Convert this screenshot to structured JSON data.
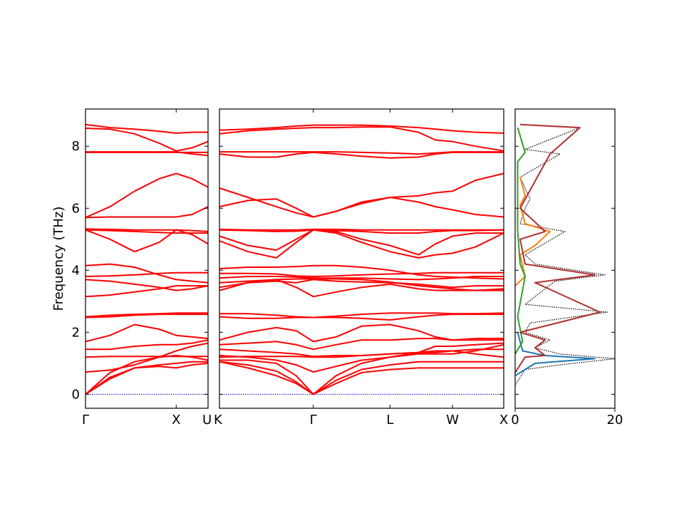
{
  "figure": {
    "ylabel": "Frequency (THz)",
    "colors": {
      "band": "#ff0000",
      "zero": "#0000cc",
      "frame": "#000000"
    }
  },
  "chart_data": [
    {
      "type": "line",
      "panel": "band-structure-segment-1",
      "ylabel": "Frequency (THz)",
      "ylim": [
        -0.45,
        9.2
      ],
      "yticks": [
        0,
        2,
        4,
        6,
        8
      ],
      "xtick_labels": [
        "Γ",
        "X",
        "U"
      ],
      "x": [
        0.0,
        0.2,
        0.4,
        0.6,
        0.74,
        0.87,
        1.0
      ],
      "series": [
        {
          "values": [
            0.0,
            0.55,
            0.85,
            0.95,
            1.0,
            1.05,
            1.05
          ]
        },
        {
          "values": [
            0.0,
            0.5,
            0.85,
            0.9,
            0.85,
            0.95,
            1.0
          ]
        },
        {
          "values": [
            0.0,
            0.7,
            1.05,
            1.2,
            1.25,
            1.2,
            1.1
          ]
        },
        {
          "values": [
            0.72,
            0.78,
            0.95,
            1.2,
            1.4,
            1.55,
            1.65
          ]
        },
        {
          "values": [
            1.2,
            1.22,
            1.22,
            1.22,
            1.22,
            1.22,
            1.22
          ]
        },
        {
          "values": [
            1.45,
            1.45,
            1.55,
            1.6,
            1.6,
            1.65,
            1.75
          ]
        },
        {
          "values": [
            1.7,
            1.9,
            2.25,
            2.1,
            1.9,
            1.85,
            1.8
          ]
        },
        {
          "values": [
            2.48,
            2.5,
            2.55,
            2.58,
            2.58,
            2.58,
            2.58
          ]
        },
        {
          "values": [
            2.5,
            2.55,
            2.58,
            2.6,
            2.62,
            2.62,
            2.62
          ]
        },
        {
          "values": [
            3.15,
            3.2,
            3.3,
            3.4,
            3.5,
            3.5,
            3.5
          ]
        },
        {
          "values": [
            3.7,
            3.65,
            3.55,
            3.45,
            3.35,
            3.4,
            3.5
          ]
        },
        {
          "values": [
            3.8,
            3.82,
            3.85,
            3.9,
            3.92,
            3.92,
            3.92
          ]
        },
        {
          "values": [
            4.15,
            4.2,
            4.1,
            3.85,
            3.7,
            3.65,
            3.6
          ]
        },
        {
          "values": [
            5.3,
            5.0,
            4.6,
            4.9,
            5.3,
            5.15,
            4.85
          ]
        },
        {
          "values": [
            5.3,
            5.28,
            5.25,
            5.22,
            5.2,
            5.2,
            5.2
          ]
        },
        {
          "values": [
            5.33,
            5.32,
            5.3,
            5.3,
            5.3,
            5.28,
            5.25
          ]
        },
        {
          "values": [
            5.7,
            5.72,
            5.72,
            5.72,
            5.72,
            5.8,
            6.05
          ]
        },
        {
          "values": [
            5.7,
            6.05,
            6.55,
            6.95,
            7.12,
            6.95,
            6.68
          ]
        },
        {
          "values": [
            7.8,
            7.8,
            7.8,
            7.8,
            7.8,
            7.8,
            7.8
          ]
        },
        {
          "values": [
            7.82,
            7.82,
            7.82,
            7.82,
            7.82,
            7.75,
            7.7
          ]
        },
        {
          "values": [
            8.58,
            8.55,
            8.4,
            8.1,
            7.85,
            7.95,
            8.15
          ]
        },
        {
          "values": [
            8.7,
            8.6,
            8.55,
            8.48,
            8.42,
            8.45,
            8.45
          ]
        }
      ]
    },
    {
      "type": "line",
      "panel": "band-structure-segment-2",
      "ylim": [
        -0.45,
        9.2
      ],
      "xtick_labels": [
        "K",
        "Γ",
        "L",
        "W",
        "X"
      ],
      "x": [
        0.0,
        0.1,
        0.2,
        0.27,
        0.33,
        0.41,
        0.5,
        0.6,
        0.7,
        0.76,
        0.82,
        0.9,
        1.0
      ],
      "series": [
        {
          "values": [
            1.05,
            0.85,
            0.6,
            0.35,
            0.0,
            0.35,
            0.7,
            0.8,
            0.85,
            0.85,
            0.85,
            0.85,
            0.85
          ]
        },
        {
          "values": [
            1.05,
            0.95,
            0.75,
            0.4,
            0.0,
            0.45,
            0.8,
            0.95,
            1.05,
            1.05,
            1.05,
            1.05,
            1.05
          ]
        },
        {
          "values": [
            1.1,
            1.1,
            1.0,
            0.6,
            0.0,
            0.6,
            1.0,
            1.2,
            1.35,
            1.4,
            1.4,
            1.3,
            1.2
          ]
        },
        {
          "values": [
            1.25,
            1.2,
            1.1,
            0.95,
            0.72,
            0.9,
            1.1,
            1.2,
            1.3,
            1.3,
            1.3,
            1.4,
            1.6
          ]
        },
        {
          "values": [
            1.2,
            1.22,
            1.22,
            1.22,
            1.2,
            1.2,
            1.25,
            1.3,
            1.35,
            1.35,
            1.4,
            1.45,
            1.45
          ]
        },
        {
          "values": [
            1.45,
            1.4,
            1.35,
            1.3,
            1.22,
            1.25,
            1.25,
            1.3,
            1.35,
            1.55,
            1.55,
            1.6,
            1.65
          ]
        },
        {
          "values": [
            1.6,
            1.65,
            1.7,
            1.6,
            1.45,
            1.6,
            1.75,
            1.75,
            1.8,
            1.8,
            1.75,
            1.75,
            1.75
          ]
        },
        {
          "values": [
            1.75,
            2.0,
            2.15,
            2.05,
            1.7,
            1.85,
            2.2,
            2.25,
            2.05,
            1.85,
            1.75,
            1.8,
            1.8
          ]
        },
        {
          "values": [
            2.5,
            2.45,
            2.45,
            2.48,
            2.48,
            2.48,
            2.45,
            2.4,
            2.5,
            2.55,
            2.58,
            2.58,
            2.58
          ]
        },
        {
          "values": [
            2.6,
            2.6,
            2.55,
            2.5,
            2.48,
            2.52,
            2.58,
            2.62,
            2.62,
            2.62,
            2.6,
            2.6,
            2.62
          ]
        },
        {
          "values": [
            3.35,
            3.6,
            3.7,
            3.45,
            3.15,
            3.3,
            3.45,
            3.55,
            3.4,
            3.35,
            3.35,
            3.35,
            3.4
          ]
        },
        {
          "values": [
            3.45,
            3.6,
            3.65,
            3.6,
            3.7,
            3.65,
            3.62,
            3.6,
            3.55,
            3.5,
            3.45,
            3.5,
            3.5
          ]
        },
        {
          "values": [
            3.6,
            3.65,
            3.7,
            3.72,
            3.72,
            3.72,
            3.7,
            3.62,
            3.5,
            3.45,
            3.4,
            3.35,
            3.35
          ]
        },
        {
          "values": [
            3.75,
            3.8,
            3.8,
            3.78,
            3.75,
            3.75,
            3.75,
            3.72,
            3.7,
            3.72,
            3.75,
            3.8,
            3.8
          ]
        },
        {
          "values": [
            3.9,
            3.9,
            3.88,
            3.82,
            3.8,
            3.82,
            3.85,
            3.88,
            3.9,
            3.92,
            3.92,
            3.92,
            3.92
          ]
        },
        {
          "values": [
            4.05,
            4.1,
            4.1,
            4.12,
            4.15,
            4.15,
            4.1,
            4.0,
            3.85,
            3.8,
            3.78,
            3.75,
            3.72
          ]
        },
        {
          "values": [
            4.95,
            4.6,
            4.4,
            4.9,
            5.3,
            5.2,
            4.9,
            4.6,
            4.4,
            4.5,
            4.55,
            4.75,
            5.2
          ]
        },
        {
          "values": [
            5.1,
            4.8,
            4.65,
            5.0,
            5.3,
            5.25,
            5.0,
            4.8,
            4.5,
            4.85,
            5.1,
            5.2,
            5.2
          ]
        },
        {
          "values": [
            5.3,
            5.28,
            5.25,
            5.26,
            5.3,
            5.28,
            5.25,
            5.2,
            5.2,
            5.25,
            5.28,
            5.28,
            5.3
          ]
        },
        {
          "values": [
            5.32,
            5.3,
            5.3,
            5.3,
            5.32,
            5.32,
            5.3,
            5.3,
            5.3,
            5.3,
            5.3,
            5.3,
            5.3
          ]
        },
        {
          "values": [
            6.05,
            6.25,
            6.3,
            6.0,
            5.72,
            5.9,
            6.2,
            6.35,
            6.4,
            6.5,
            6.55,
            6.9,
            7.12
          ]
        },
        {
          "values": [
            6.65,
            6.35,
            6.05,
            5.85,
            5.72,
            5.9,
            6.15,
            6.35,
            6.2,
            6.05,
            5.95,
            5.8,
            5.72
          ]
        },
        {
          "values": [
            7.75,
            7.65,
            7.65,
            7.75,
            7.8,
            7.75,
            7.68,
            7.62,
            7.65,
            7.75,
            7.8,
            7.8,
            7.8
          ]
        },
        {
          "values": [
            7.82,
            7.82,
            7.82,
            7.82,
            7.82,
            7.82,
            7.8,
            7.78,
            7.75,
            7.78,
            7.82,
            7.82,
            7.82
          ]
        },
        {
          "values": [
            8.4,
            8.5,
            8.55,
            8.58,
            8.6,
            8.6,
            8.62,
            8.62,
            8.45,
            8.2,
            8.15,
            8.0,
            7.85
          ]
        },
        {
          "values": [
            8.52,
            8.55,
            8.6,
            8.65,
            8.68,
            8.68,
            8.68,
            8.65,
            8.6,
            8.55,
            8.5,
            8.45,
            8.42
          ]
        }
      ]
    },
    {
      "type": "line",
      "panel": "partial-density-of-states",
      "xlim": [
        0,
        20
      ],
      "xticks": [
        0,
        20
      ],
      "ylim": [
        -0.45,
        9.2
      ],
      "series": [
        {
          "color": "#000000",
          "dashed": true,
          "points": [
            [
              0,
              0.3
            ],
            [
              2,
              0.8
            ],
            [
              9,
              0.95
            ],
            [
              20,
              1.15
            ],
            [
              9,
              1.3
            ],
            [
              4,
              1.5
            ],
            [
              7,
              1.75
            ],
            [
              2,
              2.0
            ],
            [
              3,
              2.3
            ],
            [
              18.5,
              2.65
            ],
            [
              2,
              2.9
            ],
            [
              6,
              3.4
            ],
            [
              8,
              3.65
            ],
            [
              18,
              3.85
            ],
            [
              4,
              4.2
            ],
            [
              2,
              4.5
            ],
            [
              10,
              5.25
            ],
            [
              1,
              5.5
            ],
            [
              2,
              6.0
            ],
            [
              3,
              6.3
            ],
            [
              1,
              7.0
            ],
            [
              9,
              7.75
            ],
            [
              2,
              7.9
            ],
            [
              13,
              8.6
            ],
            [
              2,
              8.7
            ]
          ]
        },
        {
          "color": "#1f77b4",
          "dashed": false,
          "points": [
            [
              0,
              0.6
            ],
            [
              4,
              1.0
            ],
            [
              16,
              1.15
            ],
            [
              6,
              1.25
            ],
            [
              1.5,
              1.4
            ],
            [
              0.5,
              2.0
            ]
          ]
        },
        {
          "color": "#ff7f0e",
          "dashed": false,
          "points": [
            [
              0,
              3.5
            ],
            [
              2,
              3.8
            ],
            [
              1,
              4.5
            ],
            [
              4,
              4.8
            ],
            [
              7,
              5.25
            ],
            [
              2,
              5.5
            ],
            [
              1,
              6.1
            ],
            [
              2,
              6.4
            ],
            [
              1,
              7.0
            ]
          ]
        },
        {
          "color": "#2ca02c",
          "dashed": false,
          "points": [
            [
              0,
              1.3
            ],
            [
              1.5,
              1.7
            ],
            [
              0.5,
              2.5
            ],
            [
              2,
              3.8
            ],
            [
              1,
              4.2
            ],
            [
              0.5,
              5.3
            ],
            [
              0.5,
              7.5
            ],
            [
              2,
              7.8
            ],
            [
              0.5,
              8.6
            ]
          ]
        },
        {
          "color": "#b03030",
          "dashed": false,
          "points": [
            [
              0,
              0.7
            ],
            [
              2,
              1.2
            ],
            [
              6,
              1.25
            ],
            [
              4,
              1.5
            ],
            [
              6,
              1.75
            ],
            [
              1,
              2.0
            ],
            [
              17,
              2.65
            ],
            [
              4,
              3.6
            ],
            [
              16,
              3.85
            ],
            [
              2,
              4.2
            ],
            [
              1,
              5.0
            ],
            [
              6,
              5.25
            ],
            [
              1,
              6.0
            ],
            [
              7,
              7.75
            ],
            [
              13,
              8.6
            ],
            [
              1,
              8.7
            ]
          ]
        }
      ]
    }
  ]
}
